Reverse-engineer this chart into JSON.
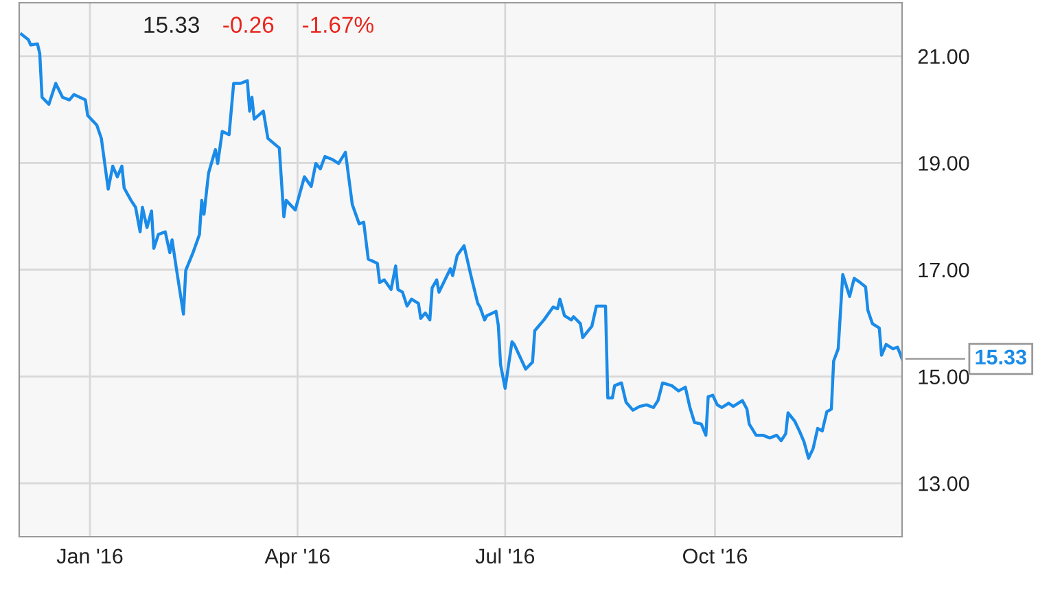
{
  "chart_data": {
    "type": "line",
    "annotations": [
      "15.33",
      "-0.26",
      "-1.67%",
      {
        "text": "15.33",
        "x": "2016-12-22",
        "y": 15.33
      }
    ],
    "x": [
      "2015-12-02",
      "2015-12-05",
      "2015-12-06",
      "2015-12-09",
      "2015-12-10",
      "2015-12-11",
      "2015-12-14",
      "2015-12-17",
      "2015-12-20",
      "2015-12-23",
      "2015-12-25",
      "2015-12-30",
      "2015-12-31",
      "2016-01-04",
      "2016-01-06",
      "2016-01-09",
      "2016-01-11",
      "2016-01-13",
      "2016-01-15",
      "2016-01-16",
      "2016-01-19",
      "2016-01-21",
      "2016-01-23",
      "2016-01-24",
      "2016-01-26",
      "2016-01-28",
      "2016-01-29",
      "2016-01-31",
      "2016-02-03",
      "2016-02-05",
      "2016-02-06",
      "2016-02-08",
      "2016-02-11",
      "2016-02-12",
      "2016-02-15",
      "2016-02-18",
      "2016-02-19",
      "2016-02-20",
      "2016-02-22",
      "2016-02-25",
      "2016-02-26",
      "2016-02-28",
      "2016-03-02",
      "2016-03-04",
      "2016-03-07",
      "2016-03-10",
      "2016-03-11",
      "2016-03-12",
      "2016-03-13",
      "2016-03-17",
      "2016-03-19",
      "2016-03-24",
      "2016-03-26",
      "2016-03-27",
      "2016-03-31",
      "2016-04-04",
      "2016-04-07",
      "2016-04-09",
      "2016-04-11",
      "2016-04-13",
      "2016-04-16",
      "2016-04-19",
      "2016-04-22",
      "2016-04-25",
      "2016-04-28",
      "2016-04-30",
      "2016-05-02",
      "2016-05-06",
      "2016-05-07",
      "2016-05-09",
      "2016-05-12",
      "2016-05-14",
      "2016-05-15",
      "2016-05-17",
      "2016-05-19",
      "2016-05-21",
      "2016-05-24",
      "2016-05-25",
      "2016-05-27",
      "2016-05-29",
      "2016-05-30",
      "2016-06-01",
      "2016-06-02",
      "2016-06-07",
      "2016-06-08",
      "2016-06-10",
      "2016-06-13",
      "2016-06-16",
      "2016-06-19",
      "2016-06-20",
      "2016-06-22",
      "2016-06-23",
      "2016-06-27",
      "2016-06-28",
      "2016-06-29",
      "2016-07-01",
      "2016-07-04",
      "2016-07-05",
      "2016-07-10",
      "2016-07-13",
      "2016-07-14",
      "2016-07-18",
      "2016-07-22",
      "2016-07-24",
      "2016-07-25",
      "2016-07-27",
      "2016-07-30",
      "2016-07-31",
      "2016-08-03",
      "2016-08-04",
      "2016-08-08",
      "2016-08-10",
      "2016-08-14",
      "2016-08-15",
      "2016-08-17",
      "2016-08-18",
      "2016-08-21",
      "2016-08-23",
      "2016-08-26",
      "2016-08-29",
      "2016-09-01",
      "2016-09-04",
      "2016-09-06",
      "2016-09-08",
      "2016-09-12",
      "2016-09-15",
      "2016-09-18",
      "2016-09-20",
      "2016-09-22",
      "2016-09-25",
      "2016-09-27",
      "2016-09-28",
      "2016-09-30",
      "2016-10-02",
      "2016-10-04",
      "2016-10-07",
      "2016-10-09",
      "2016-10-13",
      "2016-10-15",
      "2016-10-16",
      "2016-10-19",
      "2016-10-22",
      "2016-10-25",
      "2016-10-28",
      "2016-10-30",
      "2016-11-01",
      "2016-11-02",
      "2016-11-05",
      "2016-11-07",
      "2016-11-09",
      "2016-11-11",
      "2016-11-13",
      "2016-11-15",
      "2016-11-17",
      "2016-11-19",
      "2016-11-21",
      "2016-11-22",
      "2016-11-24",
      "2016-11-26",
      "2016-11-29",
      "2016-12-01",
      "2016-12-03",
      "2016-12-06",
      "2016-12-07",
      "2016-12-09",
      "2016-12-12",
      "2016-12-13",
      "2016-12-15",
      "2016-12-18",
      "2016-12-20",
      "2016-12-22"
    ],
    "series": [
      {
        "color": "#1a8be8",
        "values": [
          21.41,
          21.31,
          21.21,
          21.23,
          21.05,
          20.23,
          20.1,
          20.49,
          20.23,
          20.18,
          20.28,
          20.18,
          19.89,
          19.71,
          19.46,
          18.51,
          18.94,
          18.74,
          18.94,
          18.53,
          18.3,
          18.17,
          17.71,
          18.17,
          17.79,
          18.1,
          17.4,
          17.66,
          17.71,
          17.32,
          17.56,
          16.99,
          16.17,
          16.99,
          17.3,
          17.66,
          18.3,
          18.04,
          18.81,
          19.25,
          18.99,
          19.59,
          19.53,
          20.49,
          20.49,
          20.54,
          19.97,
          20.23,
          19.82,
          19.97,
          19.46,
          19.28,
          17.99,
          18.3,
          18.12,
          18.74,
          18.56,
          18.99,
          18.89,
          19.12,
          19.07,
          18.99,
          19.2,
          18.22,
          17.86,
          17.89,
          17.2,
          17.12,
          16.76,
          16.81,
          16.63,
          17.07,
          16.63,
          16.58,
          16.32,
          16.45,
          16.37,
          16.09,
          16.19,
          16.06,
          16.66,
          16.81,
          16.58,
          17.02,
          16.89,
          17.27,
          17.45,
          16.89,
          16.37,
          16.3,
          16.06,
          16.14,
          16.22,
          15.96,
          15.22,
          14.78,
          15.65,
          15.6,
          15.14,
          15.27,
          15.86,
          16.06,
          16.3,
          16.27,
          16.45,
          16.14,
          16.06,
          16.12,
          15.99,
          15.73,
          15.94,
          16.32,
          16.32,
          14.6,
          14.6,
          14.83,
          14.88,
          14.52,
          14.37,
          14.44,
          14.47,
          14.42,
          14.55,
          14.88,
          14.83,
          14.73,
          14.8,
          14.42,
          14.14,
          14.11,
          13.9,
          14.62,
          14.65,
          14.47,
          14.42,
          14.5,
          14.44,
          14.55,
          14.39,
          14.11,
          13.9,
          13.9,
          13.85,
          13.9,
          13.8,
          13.93,
          14.32,
          14.16,
          13.98,
          13.78,
          13.47,
          13.65,
          14.03,
          13.98,
          14.34,
          14.39,
          15.29,
          15.52,
          16.91,
          16.5,
          16.84,
          16.78,
          16.68,
          16.24,
          15.99,
          15.91,
          15.4,
          15.6,
          15.52,
          15.55,
          15.33
        ]
      }
    ],
    "xlim": [
      "2015-12-01",
      "2016-12-22"
    ],
    "xticks": [
      {
        "value": "2016-01-01",
        "label": "Jan '16"
      },
      {
        "value": "2016-04-01",
        "label": "Apr '16"
      },
      {
        "value": "2016-07-01",
        "label": "Jul '16"
      },
      {
        "value": "2016-10-01",
        "label": "Oct '16"
      }
    ],
    "ylim": [
      12,
      22
    ],
    "yticks": [
      {
        "value": 13,
        "label": "13.00"
      },
      {
        "value": 15,
        "label": "15.00"
      },
      {
        "value": 17,
        "label": "17.00"
      },
      {
        "value": 19,
        "label": "19.00"
      },
      {
        "value": 21,
        "label": "21.00"
      }
    ],
    "grid": true,
    "legend": false,
    "marker": "none",
    "line_style": "solid"
  }
}
